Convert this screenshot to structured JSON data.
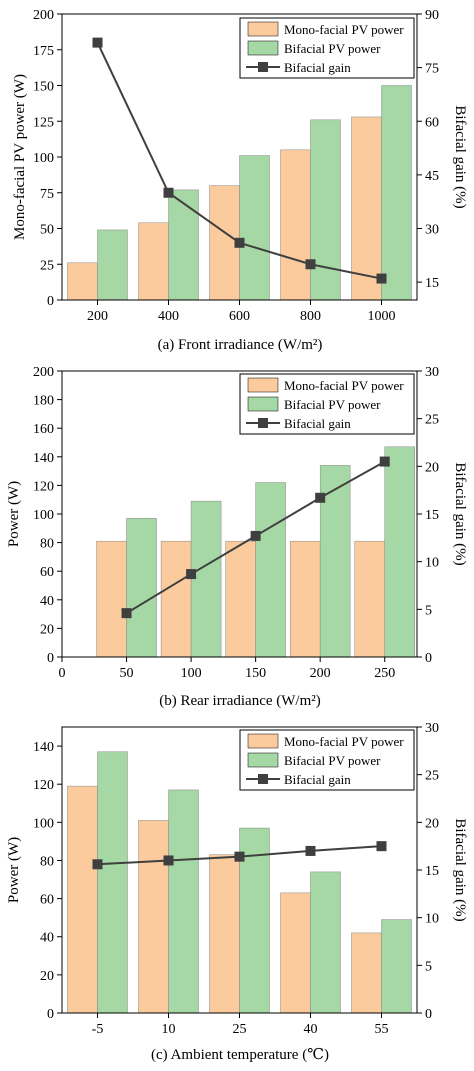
{
  "colors": {
    "mono": "#FBCB9E",
    "bifacial": "#A6D8A6",
    "gain": "#3F3F3F"
  },
  "chart_data": [
    {
      "type": "bar",
      "caption": "(a) Front irradiance (W/m²)",
      "ylabel": "Mono-facial PV power (W)",
      "y2label": "Bifacial gain (%)",
      "categories": [
        "200",
        "400",
        "600",
        "800",
        "1000"
      ],
      "x_values": [
        200,
        400,
        600,
        800,
        1000
      ],
      "xlim": [
        100,
        1100
      ],
      "ylim": [
        0,
        200
      ],
      "yticks": [
        0,
        25,
        50,
        75,
        100,
        125,
        150,
        175,
        200
      ],
      "y2lim": [
        10,
        90
      ],
      "y2ticks": [
        15,
        30,
        45,
        60,
        75,
        90
      ],
      "legend": "top-right",
      "series": [
        {
          "name": "Mono-facial PV power",
          "type": "bar",
          "axis": "left",
          "values": [
            26,
            54,
            80,
            105,
            128
          ]
        },
        {
          "name": "Bifacial PV power",
          "type": "bar",
          "axis": "left",
          "values": [
            49,
            77,
            101,
            126,
            150
          ]
        },
        {
          "name": "Bifacial gain",
          "type": "line",
          "axis": "right",
          "values": [
            82,
            40,
            26,
            20,
            16
          ]
        }
      ]
    },
    {
      "type": "bar",
      "caption": "(b) Rear irradiance (W/m²)",
      "ylabel": "Power (W)",
      "y2label": "Bifacial gain (%)",
      "categories": [
        "0",
        "50",
        "100",
        "150",
        "200",
        "250"
      ],
      "x_values": [
        0,
        50,
        100,
        150,
        200,
        250
      ],
      "xlim": [
        0,
        275
      ],
      "ylim": [
        0,
        200
      ],
      "yticks": [
        0,
        20,
        40,
        60,
        80,
        100,
        120,
        140,
        160,
        180,
        200
      ],
      "y2lim": [
        0,
        30
      ],
      "y2ticks": [
        0,
        5,
        10,
        15,
        20,
        25,
        30
      ],
      "legend": "top-right",
      "series": [
        {
          "name": "Mono-facial PV power",
          "type": "bar",
          "axis": "left",
          "x": [
            50,
            100,
            150,
            200,
            250
          ],
          "values": [
            81,
            81,
            81,
            81,
            81
          ]
        },
        {
          "name": "Bifacial PV power",
          "type": "bar",
          "axis": "left",
          "x": [
            50,
            100,
            150,
            200,
            250
          ],
          "values": [
            97,
            109,
            122,
            134,
            147
          ]
        },
        {
          "name": "Bifacial gain",
          "type": "line",
          "axis": "right",
          "x": [
            50,
            100,
            150,
            200,
            250
          ],
          "values": [
            4.6,
            8.7,
            12.7,
            16.7,
            20.5
          ]
        }
      ]
    },
    {
      "type": "bar",
      "caption": "(c) Ambient temperature (℃)",
      "ylabel": "Power (W)",
      "y2label": "Bifacial gain (%)",
      "categories": [
        "-5",
        "10",
        "25",
        "40",
        "55"
      ],
      "x_values": [
        -5,
        10,
        25,
        40,
        55
      ],
      "xlim": [
        -12.5,
        62.5
      ],
      "ylim": [
        0,
        150
      ],
      "yticks": [
        0,
        20,
        40,
        60,
        80,
        100,
        120,
        140
      ],
      "y2lim": [
        0,
        30
      ],
      "y2ticks": [
        0,
        5,
        10,
        15,
        20,
        25,
        30
      ],
      "legend": "top-right",
      "series": [
        {
          "name": "Mono-facial PV power",
          "type": "bar",
          "axis": "left",
          "values": [
            119,
            101,
            83,
            63,
            42
          ]
        },
        {
          "name": "Bifacial PV power",
          "type": "bar",
          "axis": "left",
          "values": [
            137,
            117,
            97,
            74,
            49
          ]
        },
        {
          "name": "Bifacial gain",
          "type": "line",
          "axis": "right",
          "values": [
            15.6,
            16.0,
            16.4,
            17.0,
            17.5
          ]
        }
      ]
    }
  ]
}
